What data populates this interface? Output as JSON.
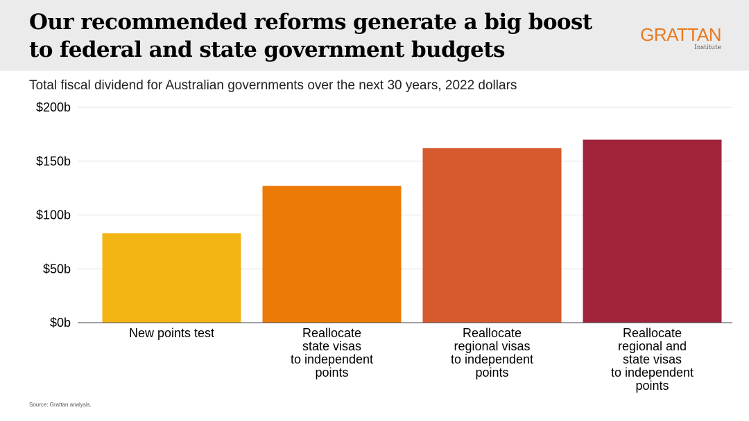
{
  "header": {
    "title": "Our recommended reforms generate a big boost to federal and state government budgets",
    "logo_main": "GRATTAN",
    "logo_sub": "Institute"
  },
  "subtitle": "Total fiscal dividend for Australian governments over the next 30 years, 2022 dollars",
  "source": "Source: Grattan analysis.",
  "chart_data": {
    "type": "bar",
    "title": "",
    "xlabel": "",
    "ylabel": "",
    "categories": [
      [
        "New points test"
      ],
      [
        "Reallocate",
        "state visas",
        "to independent",
        "points"
      ],
      [
        "Reallocate",
        "regional visas",
        "to independent",
        "points"
      ],
      [
        "Reallocate",
        "regional and",
        "state visas",
        "to independent",
        "points"
      ]
    ],
    "values": [
      83,
      127,
      162,
      170
    ],
    "colors": [
      "#f3b514",
      "#ec7a06",
      "#d65a2d",
      "#a0233c"
    ],
    "ylim": [
      0,
      200
    ],
    "yticks": [
      0,
      50,
      100,
      150,
      200
    ],
    "ytick_labels": [
      "$0b",
      "$50b",
      "$100b",
      "$150b",
      "$200b"
    ],
    "grid": true,
    "legend": "none"
  }
}
